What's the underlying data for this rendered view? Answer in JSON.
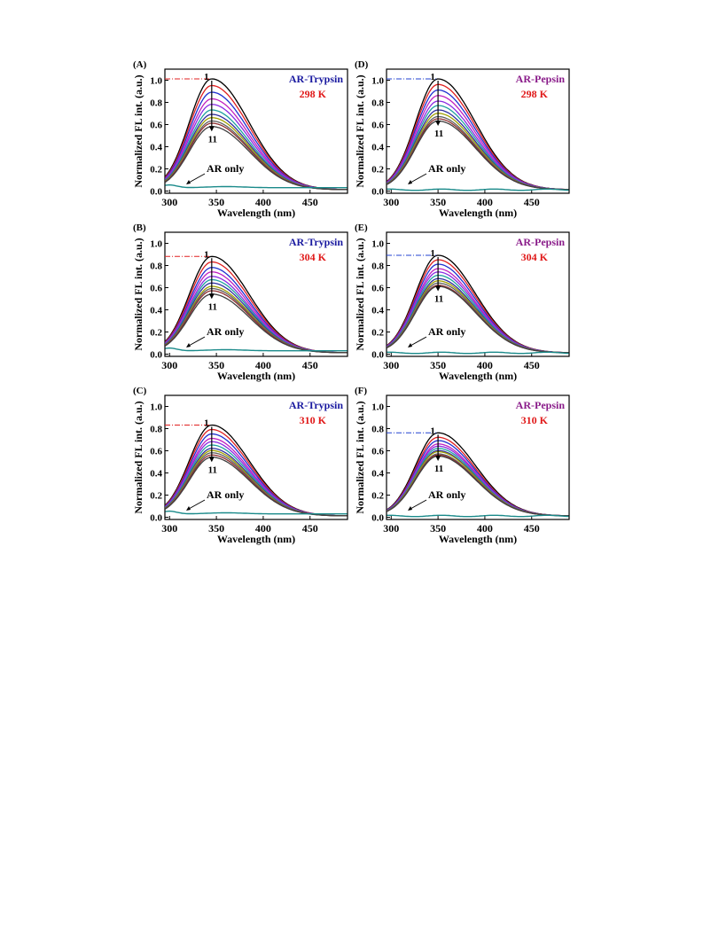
{
  "chart_data": [
    {
      "type": "line",
      "panel_label": "(A)",
      "protein": "AR-Trypsin",
      "temperature": "298 K",
      "protein_color": "#1a1aa0",
      "temperature_color": "#e01818",
      "guide_color": "#e02020",
      "xlabel": "Wavelength (nm)",
      "ylabel": "Normalized FL int. (a.u.)",
      "xlim": [
        295,
        490
      ],
      "ylim": [
        -0.02,
        1.1
      ],
      "xticks": [
        "300",
        "350",
        "400",
        "450"
      ],
      "yticks": [
        "0.0",
        "0.2",
        "0.4",
        "0.6",
        "0.8",
        "1.0"
      ],
      "peak_x": 345,
      "curve_peaks": [
        1.0,
        0.94,
        0.88,
        0.82,
        0.77,
        0.72,
        0.68,
        0.65,
        0.62,
        0.6,
        0.57
      ],
      "series_start_label": "1",
      "series_end_label": "11",
      "annotation": "AR only"
    },
    {
      "type": "line",
      "panel_label": "(B)",
      "protein": "AR-Trypsin",
      "temperature": "304 K",
      "protein_color": "#1a1aa0",
      "temperature_color": "#e01818",
      "guide_color": "#e02020",
      "xlabel": "Wavelength (nm)",
      "ylabel": "Normalized FL int. (a.u.)",
      "xlim": [
        295,
        490
      ],
      "ylim": [
        -0.02,
        1.1
      ],
      "xticks": [
        "300",
        "350",
        "400",
        "450"
      ],
      "yticks": [
        "0.0",
        "0.2",
        "0.4",
        "0.6",
        "0.8",
        "1.0"
      ],
      "peak_x": 345,
      "curve_peaks": [
        0.87,
        0.82,
        0.77,
        0.73,
        0.69,
        0.66,
        0.63,
        0.6,
        0.58,
        0.56,
        0.53
      ],
      "series_start_label": "1",
      "series_end_label": "11",
      "annotation": "AR only"
    },
    {
      "type": "line",
      "panel_label": "(C)",
      "protein": "AR-Trypsin",
      "temperature": "310 K",
      "protein_color": "#1a1aa0",
      "temperature_color": "#e01818",
      "guide_color": "#e02020",
      "xlabel": "Wavelength (nm)",
      "ylabel": "Normalized FL int. (a.u.)",
      "xlim": [
        295,
        490
      ],
      "ylim": [
        -0.02,
        1.1
      ],
      "xticks": [
        "300",
        "350",
        "400",
        "450"
      ],
      "yticks": [
        "0.0",
        "0.2",
        "0.4",
        "0.6",
        "0.8",
        "1.0"
      ],
      "peak_x": 345,
      "curve_peaks": [
        0.82,
        0.78,
        0.74,
        0.7,
        0.67,
        0.64,
        0.61,
        0.59,
        0.57,
        0.55,
        0.53
      ],
      "series_start_label": "1",
      "series_end_label": "11",
      "annotation": "AR only"
    },
    {
      "type": "line",
      "panel_label": "(D)",
      "protein": "AR-Pepsin",
      "temperature": "298 K",
      "protein_color": "#8a1c8a",
      "temperature_color": "#e01818",
      "guide_color": "#2040d0",
      "xlabel": "Wavelength (nm)",
      "ylabel": "Normalized FL int. (a.u.)",
      "xlim": [
        295,
        490
      ],
      "ylim": [
        -0.02,
        1.1
      ],
      "xticks": [
        "300",
        "350",
        "400",
        "450"
      ],
      "yticks": [
        "0.0",
        "0.2",
        "0.4",
        "0.6",
        "0.8",
        "1.0"
      ],
      "peak_x": 350,
      "curve_peaks": [
        1.0,
        0.95,
        0.9,
        0.85,
        0.8,
        0.76,
        0.72,
        0.69,
        0.66,
        0.64,
        0.62
      ],
      "series_start_label": "1",
      "series_end_label": "11",
      "annotation": "AR only"
    },
    {
      "type": "line",
      "panel_label": "(E)",
      "protein": "AR-Pepsin",
      "temperature": "304 K",
      "protein_color": "#8a1c8a",
      "temperature_color": "#e01818",
      "guide_color": "#2040d0",
      "xlabel": "Wavelength (nm)",
      "ylabel": "Normalized FL int. (a.u.)",
      "xlim": [
        295,
        490
      ],
      "ylim": [
        -0.02,
        1.1
      ],
      "xticks": [
        "300",
        "350",
        "400",
        "450"
      ],
      "yticks": [
        "0.0",
        "0.2",
        "0.4",
        "0.6",
        "0.8",
        "1.0"
      ],
      "peak_x": 350,
      "curve_peaks": [
        0.88,
        0.84,
        0.8,
        0.76,
        0.73,
        0.7,
        0.67,
        0.65,
        0.63,
        0.61,
        0.6
      ],
      "series_start_label": "1",
      "series_end_label": "11",
      "annotation": "AR only"
    },
    {
      "type": "line",
      "panel_label": "(F)",
      "protein": "AR-Pepsin",
      "temperature": "310 K",
      "protein_color": "#8a1c8a",
      "temperature_color": "#e01818",
      "guide_color": "#2040d0",
      "xlabel": "Wavelength (nm)",
      "ylabel": "Normalized FL int. (a.u.)",
      "xlim": [
        295,
        490
      ],
      "ylim": [
        -0.02,
        1.1
      ],
      "xticks": [
        "300",
        "350",
        "400",
        "450"
      ],
      "yticks": [
        "0.0",
        "0.2",
        "0.4",
        "0.6",
        "0.8",
        "1.0"
      ],
      "peak_x": 350,
      "curve_peaks": [
        0.75,
        0.71,
        0.68,
        0.65,
        0.63,
        0.61,
        0.59,
        0.58,
        0.56,
        0.55,
        0.54
      ],
      "series_start_label": "1",
      "series_end_label": "11",
      "annotation": "AR only"
    }
  ],
  "series_colors": [
    "#000000",
    "#e02020",
    "#2030d0",
    "#c020c0",
    "#8a2be2",
    "#20a0a0",
    "#3030a0",
    "#a0a000",
    "#606060",
    "#903030",
    "#404040"
  ],
  "ar_only_color": "#1a8a8a"
}
